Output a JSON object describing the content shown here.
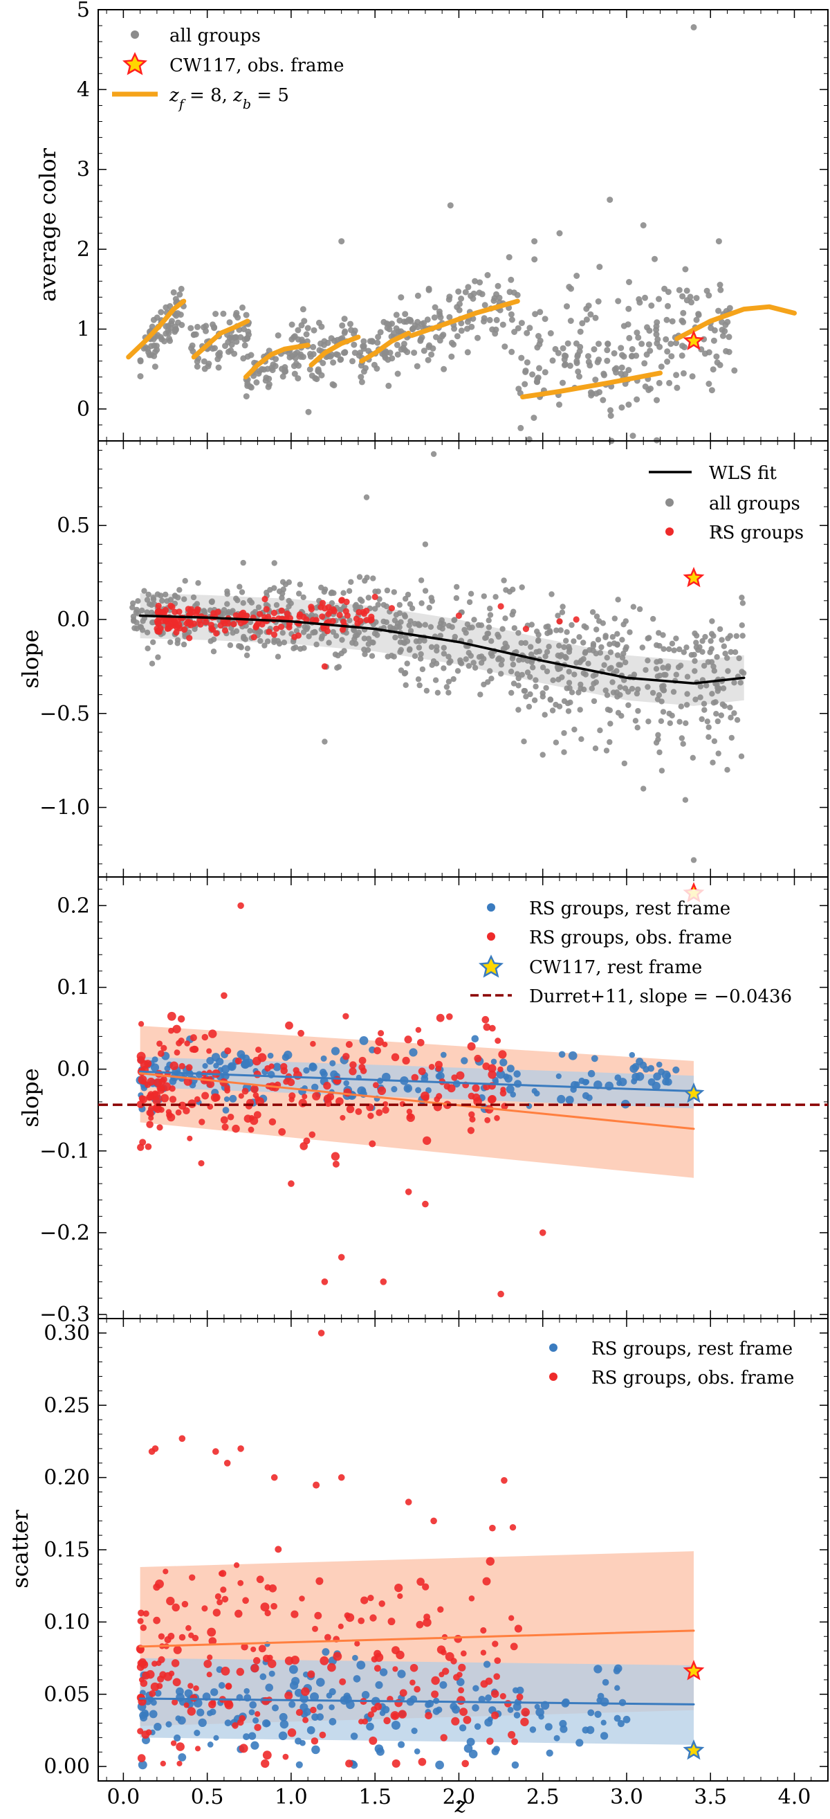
{
  "colors": {
    "gray": "#8c8c8c",
    "red": "#ee2a2a",
    "blue": "#3a7bbf",
    "orange": "#f5a31a",
    "orange_fit": "#ff7f3f",
    "orange_band": "#fcc0a6",
    "blue_band": "#b3cde6",
    "gray_band": "#dcdcdc",
    "durrett": "#8b0000",
    "star_red_fill": "#ff2020",
    "star_yellow": "#ffd700"
  },
  "xaxis": {
    "label": "z",
    "range": [
      -0.15,
      4.2
    ],
    "ticks": [
      0,
      0.5,
      1.0,
      1.5,
      2.0,
      2.5,
      3.0,
      3.5,
      4.0
    ],
    "tick_labels": [
      "0.0",
      "0.5",
      "1.0",
      "1.5",
      "2.0",
      "2.5",
      "3.0",
      "3.5",
      "4.0"
    ]
  },
  "chart_data": [
    {
      "type": "scatter",
      "panel": "average-color",
      "ylabel": "average color",
      "ylim": [
        -0.4,
        5.0
      ],
      "yticks": [
        0,
        1,
        2,
        3,
        4,
        5
      ],
      "ytick_labels": [
        "0",
        "1",
        "2",
        "3",
        "4",
        "5"
      ],
      "legend": [
        {
          "label": "all groups",
          "marker": "dot",
          "color_key": "gray"
        },
        {
          "label": "CW117, obs. frame",
          "marker": "star-red"
        },
        {
          "label": "$z_f = 8, z_b = 5$",
          "marker": "line",
          "color_key": "orange"
        }
      ],
      "legend_math": {
        "z": "z",
        "f": "f",
        "eq1": " = 8, ",
        "b": "b",
        "eq2": " = 5"
      },
      "scatter_clusters": [
        {
          "x_range": [
            0.1,
            0.36
          ],
          "center": [
            0.65,
            1.35
          ],
          "spread": 0.15,
          "n": 70
        },
        {
          "x_range": [
            0.4,
            0.75
          ],
          "center": [
            0.65,
            1.05
          ],
          "spread": 0.17,
          "n": 75
        },
        {
          "x_range": [
            0.73,
            1.1
          ],
          "center": [
            0.4,
            0.82
          ],
          "spread": 0.16,
          "n": 80
        },
        {
          "x_range": [
            1.1,
            1.4
          ],
          "center": [
            0.55,
            0.9
          ],
          "spread": 0.17,
          "n": 60
        },
        {
          "x_range": [
            1.4,
            1.7
          ],
          "center": [
            0.6,
            0.95
          ],
          "spread": 0.18,
          "n": 65
        },
        {
          "x_range": [
            1.7,
            2.35
          ],
          "center": [
            0.9,
            1.3
          ],
          "spread": 0.22,
          "n": 110
        },
        {
          "x_range": [
            2.35,
            3.3
          ],
          "center": [
            0.45,
            0.85
          ],
          "spread": 0.45,
          "n": 170
        },
        {
          "x_range": [
            3.3,
            3.65
          ],
          "center": [
            0.9,
            1.0
          ],
          "spread": 0.35,
          "n": 55
        }
      ],
      "outlier_points": [
        [
          3.4,
          4.78
        ],
        [
          2.9,
          2.62
        ],
        [
          1.95,
          2.55
        ],
        [
          3.55,
          2.1
        ],
        [
          2.6,
          2.2
        ],
        [
          2.45,
          2.1
        ],
        [
          3.1,
          2.3
        ],
        [
          1.3,
          2.1
        ],
        [
          3.35,
          1.75
        ],
        [
          2.3,
          1.9
        ]
      ],
      "model_segments": [
        {
          "x": [
            0.03,
            0.13,
            0.22,
            0.3,
            0.36
          ],
          "y": [
            0.65,
            0.85,
            1.05,
            1.25,
            1.35
          ]
        },
        {
          "x": [
            0.42,
            0.5,
            0.58,
            0.66,
            0.74
          ],
          "y": [
            0.65,
            0.8,
            0.95,
            1.02,
            1.1
          ]
        },
        {
          "x": [
            0.73,
            0.8,
            0.88,
            0.96,
            1.1
          ],
          "y": [
            0.4,
            0.55,
            0.68,
            0.75,
            0.8
          ]
        },
        {
          "x": [
            1.12,
            1.2,
            1.3,
            1.4
          ],
          "y": [
            0.55,
            0.7,
            0.82,
            0.9
          ]
        },
        {
          "x": [
            1.42,
            1.5,
            1.6,
            1.7
          ],
          "y": [
            0.6,
            0.7,
            0.85,
            0.95
          ]
        },
        {
          "x": [
            1.72,
            1.9,
            2.1,
            2.35
          ],
          "y": [
            0.92,
            1.05,
            1.2,
            1.35
          ]
        },
        {
          "x": [
            2.38,
            2.6,
            2.9,
            3.2
          ],
          "y": [
            0.15,
            0.22,
            0.33,
            0.45
          ]
        },
        {
          "x": [
            3.3,
            3.5,
            3.7,
            3.85,
            4.0
          ],
          "y": [
            0.88,
            1.1,
            1.25,
            1.28,
            1.2
          ]
        }
      ],
      "star_points": [
        {
          "x": 3.4,
          "y": 0.85,
          "style": "red"
        }
      ]
    },
    {
      "type": "scatter",
      "panel": "slope-all",
      "ylabel": "slope",
      "ylim": [
        -1.37,
        0.95
      ],
      "yticks": [
        -1.0,
        -0.5,
        0.0,
        0.5
      ],
      "ytick_labels": [
        "−1.0",
        "−0.5",
        "0.0",
        "0.5"
      ],
      "legend": [
        {
          "label": "WLS fit",
          "marker": "line",
          "color_key": "black"
        },
        {
          "label": "all groups",
          "marker": "dot",
          "color_key": "gray"
        },
        {
          "label": "RS groups",
          "marker": "dot",
          "color_key": "red"
        }
      ],
      "wls_fit": {
        "x": [
          0.1,
          0.5,
          1.0,
          1.5,
          2.0,
          2.5,
          3.0,
          3.4,
          3.7
        ],
        "y": [
          0.02,
          0.01,
          -0.01,
          -0.05,
          -0.12,
          -0.22,
          -0.31,
          -0.34,
          -0.31
        ]
      },
      "band_halfwidth": 0.12,
      "all_groups": {
        "x_range": [
          0.05,
          3.7
        ],
        "n": 900,
        "spread_low": 0.07,
        "spread_high": 0.2
      },
      "rs_groups": {
        "x_range": [
          0.2,
          1.5
        ],
        "center_y": 0.0,
        "spread": 0.04,
        "n": 170
      },
      "rs_extra_points": [
        [
          1.3,
          0.1
        ],
        [
          1.5,
          0.12
        ],
        [
          1.6,
          0.06
        ],
        [
          2.0,
          0.02
        ],
        [
          2.4,
          -0.05
        ],
        [
          2.6,
          -0.01
        ],
        [
          1.2,
          -0.25
        ],
        [
          2.25,
          0.07
        ],
        [
          2.7,
          0.0
        ]
      ],
      "outlier_points": [
        [
          1.85,
          0.88
        ],
        [
          1.45,
          0.65
        ],
        [
          3.4,
          -1.28
        ],
        [
          3.35,
          -0.96
        ],
        [
          3.1,
          -0.9
        ],
        [
          1.2,
          -0.65
        ],
        [
          2.5,
          -0.72
        ],
        [
          0.9,
          0.3
        ],
        [
          3.6,
          -0.8
        ],
        [
          3.55,
          0.48
        ],
        [
          1.8,
          0.4
        ]
      ],
      "star_points": [
        {
          "x": 3.4,
          "y": 0.22,
          "style": "red"
        }
      ]
    },
    {
      "type": "scatter",
      "panel": "slope-rs",
      "ylabel": "slope",
      "ylim": [
        -0.305,
        0.235
      ],
      "yticks": [
        -0.3,
        -0.2,
        -0.1,
        0.0,
        0.1,
        0.2
      ],
      "ytick_labels": [
        "−0.3",
        "−0.2",
        "−0.1",
        "0.0",
        "0.1",
        "0.2"
      ],
      "legend": [
        {
          "label": "RS groups, rest frame",
          "marker": "dot",
          "color_key": "blue"
        },
        {
          "label": "RS groups, obs. frame",
          "marker": "dot",
          "color_key": "red"
        },
        {
          "label": "CW117, rest frame",
          "marker": "star-blue"
        },
        {
          "label": "Durret+11, slope = −0.0436",
          "marker": "dash",
          "color_key": "durrett"
        }
      ],
      "durrett_slope": -0.0436,
      "fit_rest": {
        "x": [
          0.1,
          3.4
        ],
        "y": [
          -0.003,
          -0.027
        ]
      },
      "fit_obs": {
        "x": [
          0.1,
          3.4
        ],
        "y": [
          -0.005,
          -0.073
        ]
      },
      "band_rest": {
        "x": [
          0.1,
          3.4
        ],
        "upper": [
          0.015,
          -0.008
        ],
        "lower": [
          -0.022,
          -0.048
        ]
      },
      "band_obs": {
        "x": [
          0.1,
          3.4
        ],
        "upper": [
          0.053,
          0.01
        ],
        "lower": [
          -0.065,
          -0.133
        ]
      },
      "rest_points": {
        "x_range": [
          0.1,
          3.3
        ],
        "center_y": -0.01,
        "spread": 0.018,
        "n": 190
      },
      "obs_points": {
        "x_range": [
          0.1,
          2.3
        ],
        "center_y": -0.02,
        "spread": 0.04,
        "n": 230
      },
      "obs_outliers": [
        [
          0.7,
          0.2
        ],
        [
          1.8,
          -0.165
        ],
        [
          1.2,
          -0.26
        ],
        [
          1.3,
          -0.23
        ],
        [
          2.25,
          -0.275
        ],
        [
          1.55,
          -0.26
        ],
        [
          2.5,
          -0.2
        ],
        [
          1.7,
          -0.15
        ],
        [
          1.0,
          -0.14
        ],
        [
          2.2,
          0.05
        ],
        [
          0.6,
          0.09
        ]
      ],
      "star_points": [
        {
          "x": 3.4,
          "y": -0.03,
          "style": "blue"
        },
        {
          "x": 3.4,
          "y": 0.215,
          "style": "red"
        }
      ]
    },
    {
      "type": "scatter",
      "panel": "scatter",
      "ylabel": "scatter",
      "ylim": [
        -0.01,
        0.31
      ],
      "yticks": [
        0.0,
        0.05,
        0.1,
        0.15,
        0.2,
        0.25,
        0.3
      ],
      "ytick_labels": [
        "0.00",
        "0.05",
        "0.10",
        "0.15",
        "0.20",
        "0.25",
        "0.30"
      ],
      "legend": [
        {
          "label": "RS groups, rest frame",
          "marker": "dot",
          "color_key": "blue"
        },
        {
          "label": "RS groups, obs. frame",
          "marker": "dot",
          "color_key": "red"
        }
      ],
      "fit_rest": {
        "x": [
          0.1,
          3.4
        ],
        "y": [
          0.047,
          0.043
        ]
      },
      "fit_obs": {
        "x": [
          0.1,
          3.4
        ],
        "y": [
          0.083,
          0.094
        ]
      },
      "band_rest": {
        "x": [
          0.1,
          3.4
        ],
        "upper": [
          0.075,
          0.07
        ],
        "lower": [
          0.02,
          0.015
        ]
      },
      "band_obs": {
        "x": [
          0.1,
          3.4
        ],
        "upper": [
          0.138,
          0.149
        ],
        "lower": [
          0.028,
          0.039
        ]
      },
      "rest_points": {
        "x_range": [
          0.1,
          3.0
        ],
        "center_y": 0.04,
        "spread": 0.018,
        "n": 200
      },
      "obs_points": {
        "x_range": [
          0.1,
          2.4
        ],
        "center_y": 0.07,
        "spread": 0.035,
        "n": 230
      },
      "obs_outliers": [
        [
          1.18,
          0.3
        ],
        [
          0.35,
          0.227
        ],
        [
          0.17,
          0.218
        ],
        [
          0.19,
          0.22
        ],
        [
          0.55,
          0.218
        ],
        [
          0.7,
          0.22
        ],
        [
          1.3,
          0.2
        ],
        [
          2.27,
          0.198
        ],
        [
          0.62,
          0.21
        ],
        [
          0.9,
          0.2
        ],
        [
          1.7,
          0.183
        ],
        [
          2.2,
          0.165
        ],
        [
          1.85,
          0.17
        ]
      ],
      "star_points": [
        {
          "x": 3.4,
          "y": 0.066,
          "style": "red"
        },
        {
          "x": 3.4,
          "y": 0.011,
          "style": "blue"
        }
      ]
    }
  ]
}
